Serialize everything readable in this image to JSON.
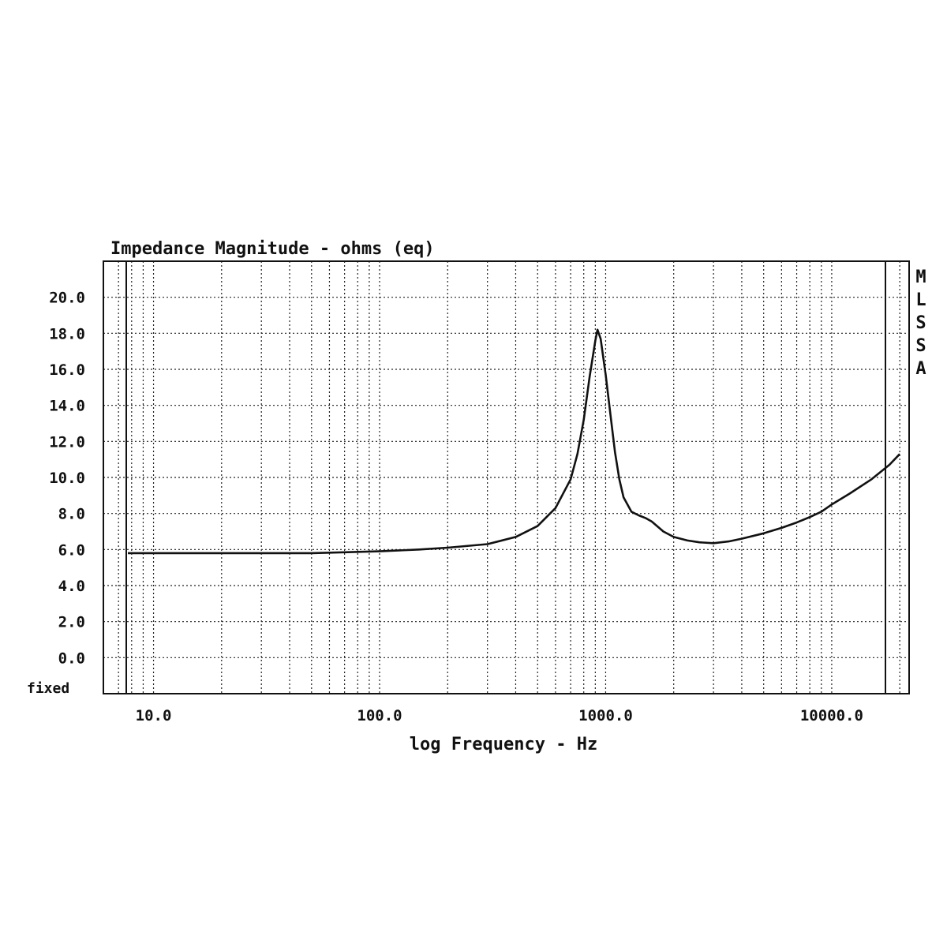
{
  "chart_data": {
    "type": "line",
    "title": "Impedance Magnitude - ohms (eq)",
    "xlabel": "log Frequency - Hz",
    "ylabel": "",
    "x_scale": "log",
    "xlim": [
      6.0,
      22000
    ],
    "ylim": [
      -2.0,
      22.0
    ],
    "y_ticks": [
      0.0,
      2.0,
      4.0,
      6.0,
      8.0,
      10.0,
      12.0,
      14.0,
      16.0,
      18.0,
      20.0
    ],
    "y_tick_labels": [
      "0.0",
      "2.0",
      "4.0",
      "6.0",
      "8.0",
      "10.0",
      "12.0",
      "14.0",
      "16.0",
      "18.0",
      "20.0"
    ],
    "y_bottom_label": "fixed",
    "x_ticks": [
      10,
      100,
      1000,
      10000
    ],
    "x_tick_labels": [
      "10.0",
      "100.0",
      "1000.0",
      "10000.0"
    ],
    "grid": true,
    "side_label": [
      "M",
      "L",
      "S",
      "S",
      "A"
    ],
    "series": [
      {
        "x": [
          7.7,
          10,
          20,
          30,
          50,
          70,
          100,
          150,
          200,
          300,
          400,
          500,
          600,
          700,
          750,
          800,
          850,
          900,
          920,
          950,
          1000,
          1050,
          1100,
          1150,
          1200,
          1300,
          1400,
          1500,
          1600,
          1800,
          2000,
          2300,
          2600,
          3000,
          3500,
          4000,
          5000,
          6000,
          7000,
          8000,
          9000,
          10000,
          12000,
          15000,
          18000,
          20000
        ],
        "y": [
          5.8,
          5.8,
          5.8,
          5.8,
          5.8,
          5.85,
          5.9,
          6.0,
          6.1,
          6.3,
          6.7,
          7.3,
          8.3,
          9.9,
          11.3,
          13.2,
          15.6,
          17.6,
          18.2,
          17.7,
          15.7,
          13.5,
          11.4,
          9.9,
          8.9,
          8.1,
          7.9,
          7.75,
          7.55,
          7.0,
          6.7,
          6.5,
          6.4,
          6.35,
          6.45,
          6.6,
          6.9,
          7.2,
          7.5,
          7.8,
          8.1,
          8.5,
          9.1,
          9.9,
          10.7,
          11.3
        ]
      }
    ],
    "line_color": "#111111"
  }
}
